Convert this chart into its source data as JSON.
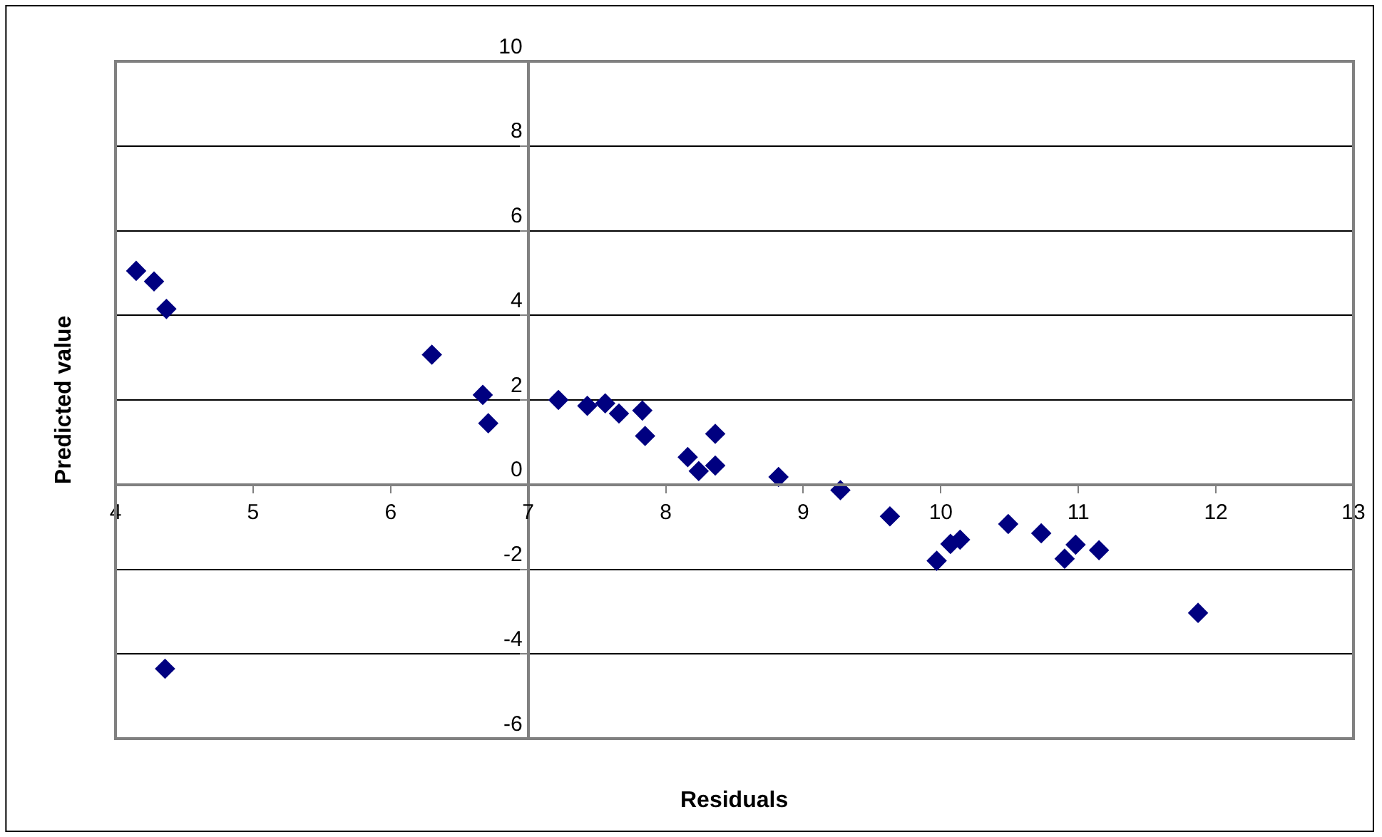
{
  "chart_data": {
    "type": "scatter",
    "xlabel": "Residuals",
    "ylabel": "Predicted value",
    "x": [
      4.15,
      4.28,
      4.37,
      4.36,
      6.3,
      6.67,
      6.71,
      7.22,
      7.43,
      7.56,
      7.66,
      7.83,
      7.85,
      8.16,
      8.24,
      8.36,
      8.36,
      8.82,
      9.27,
      9.63,
      9.97,
      10.07,
      10.14,
      10.49,
      10.73,
      10.9,
      10.98,
      11.15,
      11.87
    ],
    "series": [
      {
        "color": "#000080",
        "values": [
          5.05,
          4.8,
          4.15,
          -4.35,
          3.07,
          2.12,
          1.45,
          2.0,
          1.86,
          1.92,
          1.68,
          1.75,
          1.15,
          0.65,
          0.32,
          0.45,
          1.2,
          0.18,
          -0.13,
          -0.75,
          -1.8,
          -1.4,
          -1.3,
          -0.93,
          -1.15,
          -1.75,
          -1.42,
          -1.55,
          -3.03
        ]
      }
    ],
    "xlim": [
      4,
      13
    ],
    "xticks": [
      4,
      5,
      6,
      7,
      8,
      9,
      10,
      11,
      12,
      13
    ],
    "ylim": [
      -6,
      10
    ],
    "yticks": [
      -6,
      -4,
      -2,
      0,
      2,
      4,
      6,
      8,
      10
    ],
    "grid": "y",
    "marker": "diamond",
    "legend": false
  }
}
